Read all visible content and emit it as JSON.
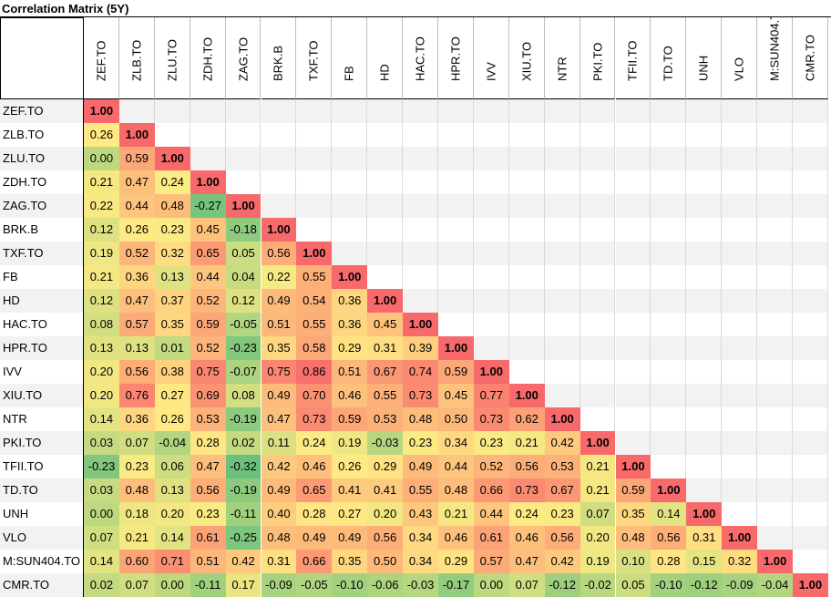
{
  "chart_data": {
    "type": "heatmap",
    "title": "Correlation Matrix (5Y)",
    "labels": [
      "ZEF.TO",
      "ZLB.TO",
      "ZLU.TO",
      "ZDH.TO",
      "ZAG.TO",
      "BRK.B",
      "TXF.TO",
      "FB",
      "HD",
      "HAC.TO",
      "HPR.TO",
      "IVV",
      "XIU.TO",
      "NTR",
      "PKI.TO",
      "TFII.TO",
      "TD.TO",
      "UNH",
      "VLO",
      "M:SUN404.TO",
      "CMR.TO"
    ],
    "display": [
      "1.00",
      "0.26",
      "0.00",
      "0.21",
      "0.22",
      "0.12",
      "0.19",
      "0.21",
      "0.12",
      "0.08",
      "0.13",
      "0.20",
      "0.20",
      "0.14",
      "0.03",
      "-0.23",
      "0.03",
      "0.00",
      "0.07",
      "0.14",
      "0.02",
      "1.00",
      "0.59",
      "0.47",
      "0.44",
      "0.26",
      "0.52",
      "0.36",
      "0.47",
      "0.57",
      "0.13",
      "0.56",
      "0.76",
      "0.36",
      "0.07",
      "0.23",
      "0.48",
      "0.18",
      "0.21",
      "0.60",
      "0.07",
      "1.00",
      "0.24",
      "0.48",
      "0.23",
      "0.32",
      "0.13",
      "0.37",
      "0.35",
      "0.01",
      "0.38",
      "0.27",
      "0.26",
      "-0.04",
      "0.06",
      "0.13",
      "0.20",
      "0.14",
      "0.71",
      "0.00",
      "1.00",
      "-0.27",
      "0.45",
      "0.65",
      "0.44",
      "0.52",
      "0.59",
      "0.52",
      "0.75",
      "0.69",
      "0.53",
      "0.28",
      "0.47",
      "0.56",
      "0.23",
      "0.61",
      "0.51",
      "-0.11",
      "1.00",
      "-0.18",
      "0.05",
      "0.04",
      "0.12",
      "-0.05",
      "-0.23",
      "-0.07",
      "0.08",
      "-0.19",
      "0.02",
      "-0.32",
      "-0.19",
      "-0.11",
      "-0.25",
      "0.42",
      "0.17",
      "1.00",
      "0.56",
      "0.22",
      "0.49",
      "0.51",
      "0.35",
      "0.75",
      "0.49",
      "0.47",
      "0.11",
      "0.42",
      "0.49",
      "0.40",
      "0.48",
      "0.31",
      "-0.09",
      "1.00",
      "0.55",
      "0.54",
      "0.55",
      "0.58",
      "0.86",
      "0.70",
      "0.73",
      "0.24",
      "0.46",
      "0.65",
      "0.28",
      "0.49",
      "0.66",
      "-0.05",
      "1.00",
      "0.36",
      "0.36",
      "0.29",
      "0.51",
      "0.46",
      "0.59",
      "0.19",
      "0.26",
      "0.41",
      "0.27",
      "0.49",
      "0.35",
      "-0.10",
      "1.00",
      "0.45",
      "0.31",
      "0.67",
      "0.55",
      "0.53",
      "-0.03",
      "0.29",
      "0.41",
      "0.20",
      "0.56",
      "0.50",
      "-0.06",
      "1.00",
      "0.39",
      "0.74",
      "0.73",
      "0.48",
      "0.23",
      "0.49",
      "0.55",
      "0.43",
      "0.34",
      "0.34",
      "-0.03",
      "1.00",
      "0.59",
      "0.45",
      "0.50",
      "0.34",
      "0.44",
      "0.48",
      "0.21",
      "0.46",
      "0.29",
      "-0.17",
      "1.00",
      "0.77",
      "0.73",
      "0.23",
      "0.52",
      "0.66",
      "0.44",
      "0.61",
      "0.57",
      "0.00",
      "1.00",
      "0.62",
      "0.21",
      "0.56",
      "0.73",
      "0.24",
      "0.46",
      "0.47",
      "0.07",
      "1.00",
      "0.42",
      "0.53",
      "0.67",
      "0.23",
      "0.56",
      "0.42",
      "-0.12",
      "1.00",
      "0.21",
      "0.21",
      "0.07",
      "0.20",
      "0.19",
      "-0.02",
      "1.00",
      "0.59",
      "0.35",
      "0.48",
      "0.10",
      "0.05",
      "1.00",
      "0.14",
      "0.56",
      "0.28",
      "-0.10",
      "1.00",
      "0.31",
      "0.15",
      "-0.12",
      "1.00",
      "0.32",
      "-0.09",
      "1.00",
      "-0.04",
      "1.00"
    ]
  }
}
